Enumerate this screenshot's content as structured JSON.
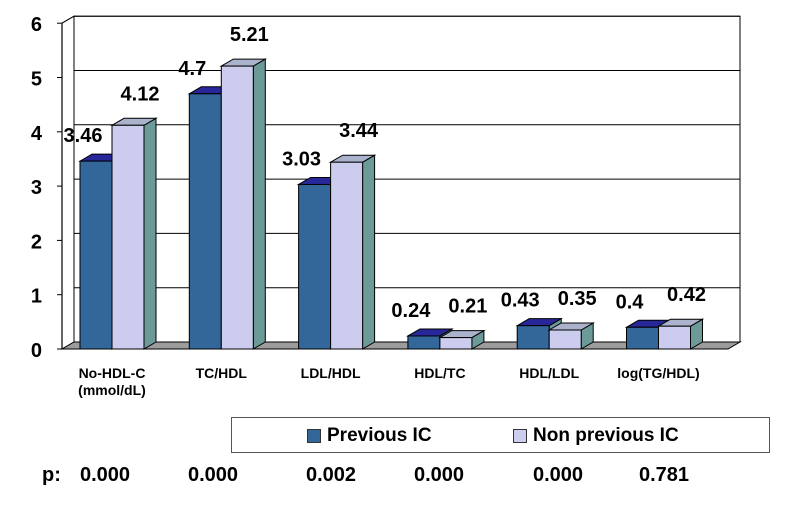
{
  "chart_data": {
    "type": "bar",
    "categories": [
      "No-HDL-C\n(mmol/dL)",
      "TC/HDL",
      "LDL/HDL",
      "HDL/TC",
      "HDL/LDL",
      "log(TG/HDL)"
    ],
    "series": [
      {
        "name": "Previous IC",
        "values": [
          3.46,
          4.7,
          3.03,
          0.24,
          0.43,
          0.4
        ],
        "labels": [
          "3.46",
          "4.7",
          "3.03",
          "0.24",
          "0.43",
          "0.4"
        ]
      },
      {
        "name": "Non previous IC",
        "values": [
          4.12,
          5.21,
          3.44,
          0.21,
          0.35,
          0.42
        ],
        "labels": [
          "4.12",
          "5.21",
          "3.44",
          "0.21",
          "0.35",
          "0.42"
        ]
      }
    ],
    "ylim": [
      0,
      6
    ],
    "yticks": [
      "0",
      "1",
      "2",
      "3",
      "4",
      "5",
      "6"
    ],
    "grid": true,
    "legend_position": "bottom"
  },
  "colors": {
    "series1": "#336699",
    "series1_top": "#27279a",
    "series2": "#ccccee",
    "series2_top": "#aab2cc",
    "side": "#6b9a98",
    "floor": "#9c9c9c"
  },
  "pvalues": {
    "label": "p:",
    "values": [
      "0.000",
      "0.000",
      "0.002",
      "0.000",
      "0.000",
      "0.781"
    ]
  }
}
